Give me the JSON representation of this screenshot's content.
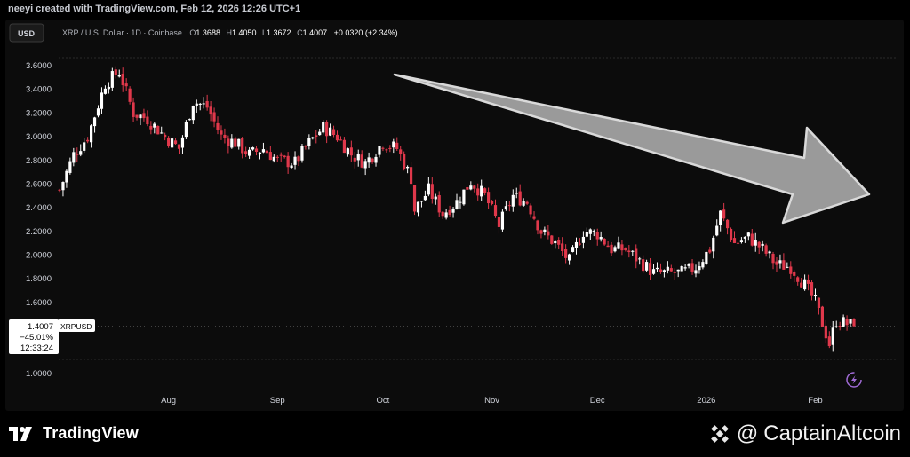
{
  "header": {
    "caption": "neeyi created with TradingView.com, Feb 12, 2026 12:26 UTC+1",
    "currency_button": "USD",
    "symbol_desc": "XRP / U.S. Dollar · 1D · Coinbase",
    "ohlc": {
      "o_label": "O",
      "o": "1.3688",
      "h_label": "H",
      "h": "1.4050",
      "l_label": "L",
      "l": "1.3672",
      "c_label": "C",
      "c": "1.4007",
      "change": "+0.0320 (+2.34%)"
    }
  },
  "price_label": {
    "price": "1.4007",
    "change_pct": "−45.01%",
    "countdown": "12:33:24",
    "symbol": "XRPUSD"
  },
  "footer": {
    "tv_logo_text": "TradingView",
    "at_symbol": "@",
    "brand_name": "CaptainAltcoin"
  },
  "colors": {
    "up": "#ffffff",
    "down": "#e0384b",
    "arrow_fill": "#9a9a9a",
    "arrow_stroke": "#d9d9d9",
    "bolt": "#a06bd6"
  },
  "icons": {
    "replay_bolt": "lightning-circle-icon",
    "binance_logo": "binance-diamond-icon",
    "tv_logo": "tradingview-logo-icon"
  },
  "chart_data": {
    "type": "candlestick",
    "y_ticks": [
      "3.6000",
      "3.4000",
      "3.2000",
      "3.0000",
      "2.8000",
      "2.6000",
      "2.4000",
      "2.2000",
      "2.0000",
      "1.8000",
      "1.6000",
      "1.0000"
    ],
    "ylim": [
      0.9,
      3.65
    ],
    "x_ticks": [
      "Aug",
      "Sep",
      "Oct",
      "Nov",
      "Dec",
      "2026",
      "Feb"
    ],
    "annotation": "large gray downtrend arrow",
    "candles_approx_close_path": [
      [
        "2025-07-01",
        2.55
      ],
      [
        "2025-07-05",
        2.85
      ],
      [
        "2025-07-09",
        3.0
      ],
      [
        "2025-07-14",
        3.45
      ],
      [
        "2025-07-18",
        3.55
      ],
      [
        "2025-07-22",
        3.2
      ],
      [
        "2025-07-26",
        3.15
      ],
      [
        "2025-07-31",
        3.0
      ],
      [
        "2025-08-04",
        2.9
      ],
      [
        "2025-08-08",
        3.3
      ],
      [
        "2025-08-12",
        3.25
      ],
      [
        "2025-08-16",
        3.0
      ],
      [
        "2025-08-20",
        2.95
      ],
      [
        "2025-08-24",
        2.85
      ],
      [
        "2025-08-28",
        2.9
      ],
      [
        "2025-09-01",
        2.8
      ],
      [
        "2025-09-06",
        2.78
      ],
      [
        "2025-09-10",
        2.95
      ],
      [
        "2025-09-14",
        3.08
      ],
      [
        "2025-09-18",
        3.0
      ],
      [
        "2025-09-22",
        2.85
      ],
      [
        "2025-09-26",
        2.78
      ],
      [
        "2025-10-01",
        2.95
      ],
      [
        "2025-10-05",
        2.9
      ],
      [
        "2025-10-09",
        2.65
      ],
      [
        "2025-10-10",
        2.38
      ],
      [
        "2025-10-14",
        2.55
      ],
      [
        "2025-10-18",
        2.35
      ],
      [
        "2025-10-22",
        2.45
      ],
      [
        "2025-10-26",
        2.62
      ],
      [
        "2025-10-30",
        2.5
      ],
      [
        "2025-11-03",
        2.25
      ],
      [
        "2025-11-07",
        2.5
      ],
      [
        "2025-11-11",
        2.45
      ],
      [
        "2025-11-15",
        2.2
      ],
      [
        "2025-11-19",
        2.1
      ],
      [
        "2025-11-23",
        1.95
      ],
      [
        "2025-11-27",
        2.2
      ],
      [
        "2025-12-01",
        2.18
      ],
      [
        "2025-12-05",
        2.05
      ],
      [
        "2025-12-09",
        2.05
      ],
      [
        "2025-12-13",
        1.95
      ],
      [
        "2025-12-17",
        1.85
      ],
      [
        "2025-12-21",
        1.85
      ],
      [
        "2025-12-25",
        1.85
      ],
      [
        "2025-12-29",
        1.9
      ],
      [
        "2026-01-02",
        2.05
      ],
      [
        "2026-01-05",
        2.35
      ],
      [
        "2026-01-09",
        2.1
      ],
      [
        "2026-01-13",
        2.15
      ],
      [
        "2026-01-17",
        2.05
      ],
      [
        "2026-01-21",
        1.92
      ],
      [
        "2026-01-25",
        1.9
      ],
      [
        "2026-01-29",
        1.75
      ],
      [
        "2026-02-01",
        1.6
      ],
      [
        "2026-02-05",
        1.25
      ],
      [
        "2026-02-07",
        1.45
      ],
      [
        "2026-02-10",
        1.42
      ],
      [
        "2026-02-12",
        1.4007
      ]
    ]
  }
}
